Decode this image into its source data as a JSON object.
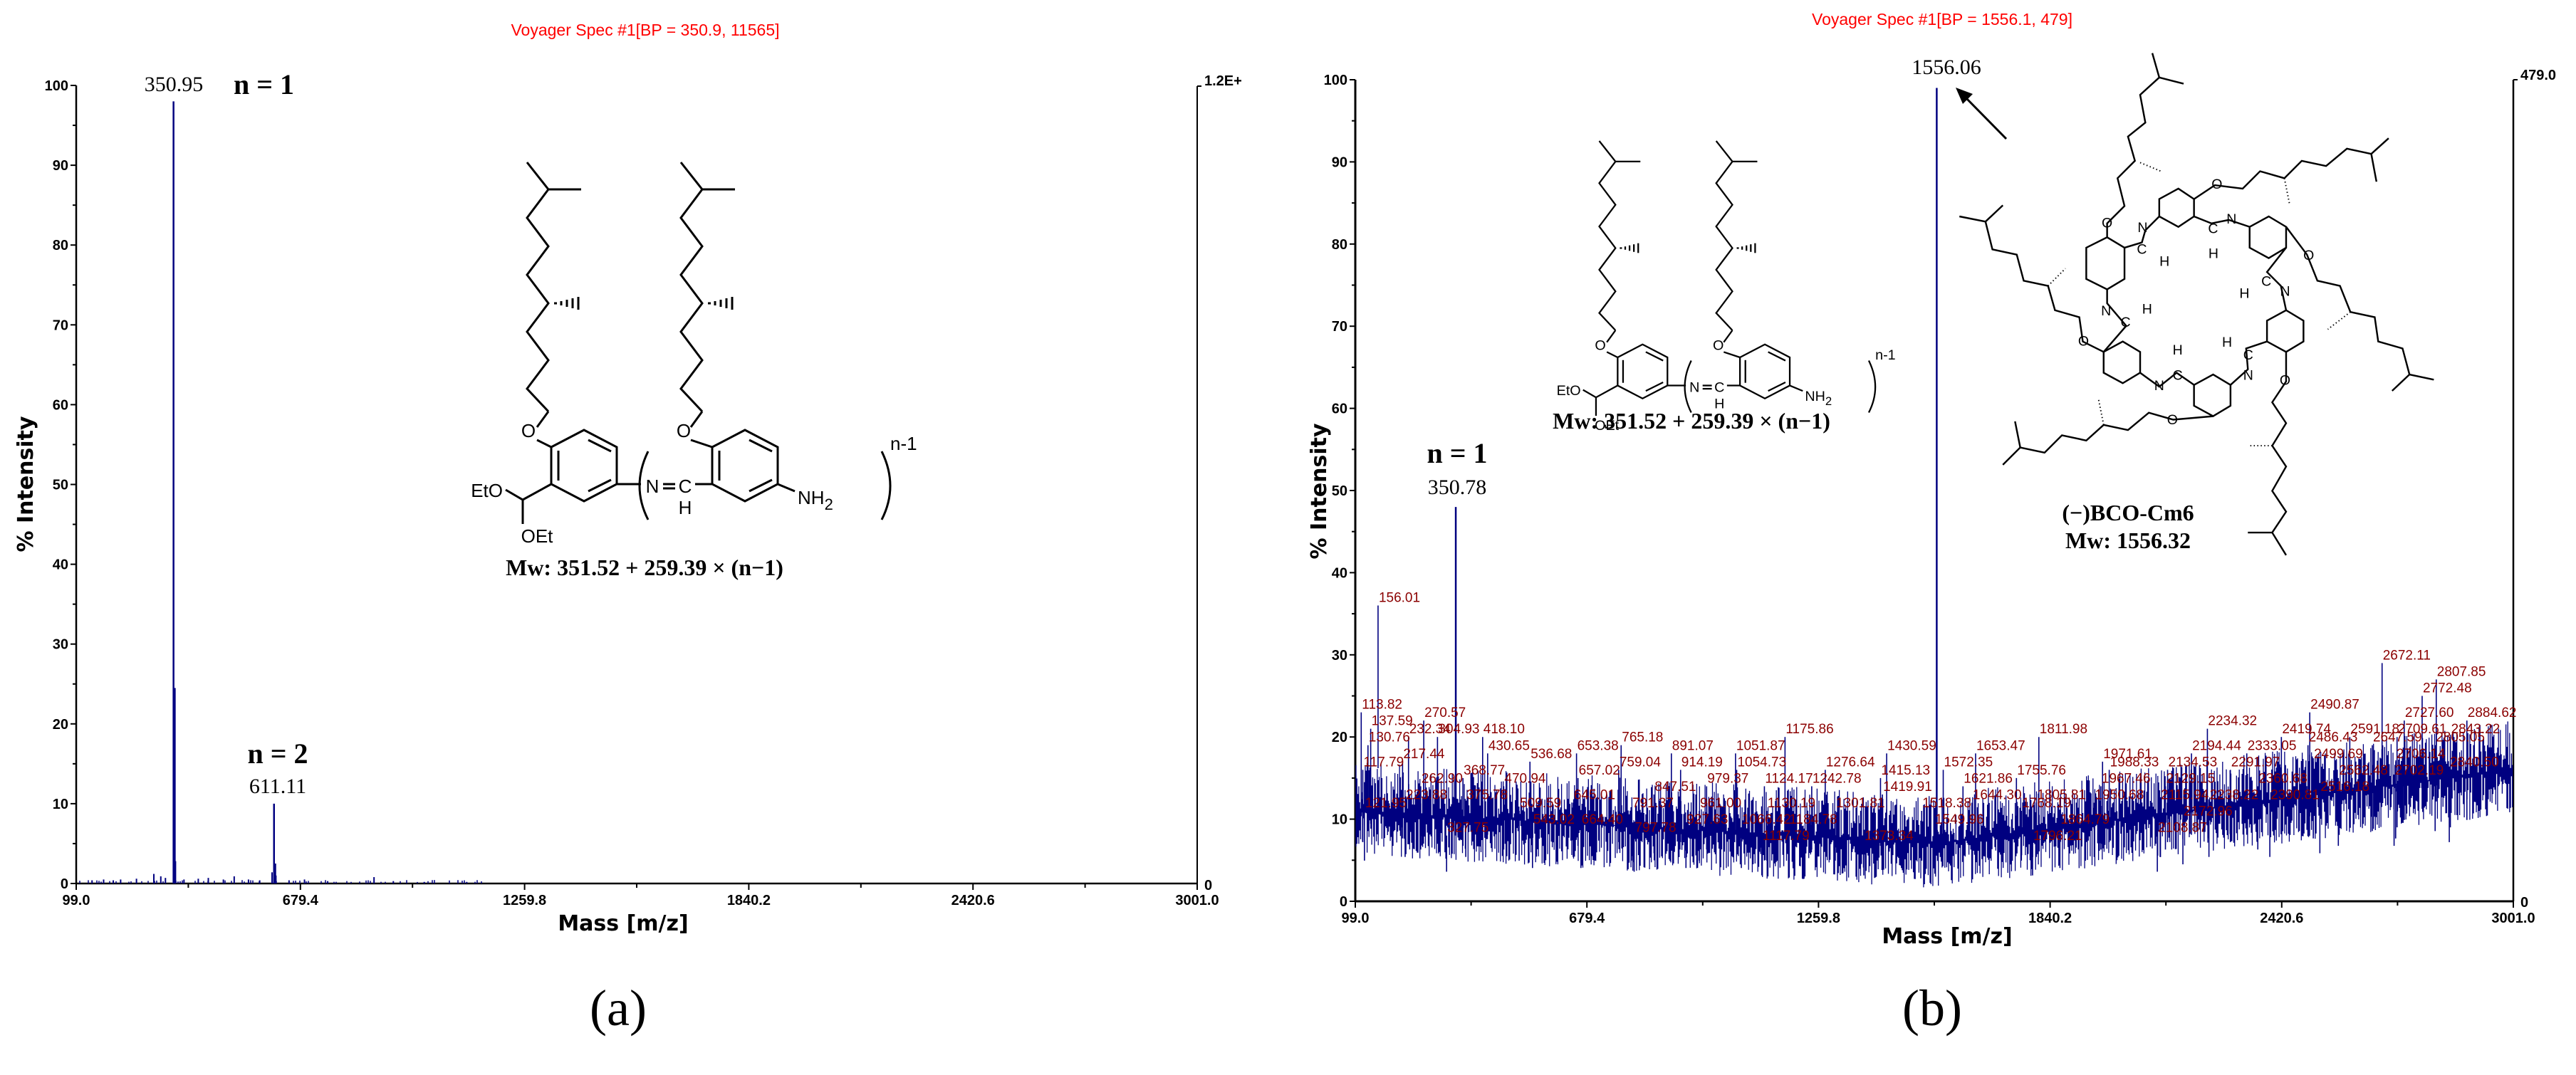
{
  "figure_labels": {
    "a": "(a)",
    "b": "(b)"
  },
  "colors": {
    "spectrum": "#000080",
    "title": "#ff0000",
    "peak_label": "#8b0000",
    "axis": "#000000"
  },
  "chart_data": [
    {
      "type": "bar",
      "panel": "a",
      "title": "Voyager Spec #1[BP = 350.9, 11565]",
      "xlabel": "Mass [m/z]",
      "ylabel": "% Intensity",
      "xlim": [
        99.0,
        3001.0
      ],
      "ylim": [
        0,
        100
      ],
      "x_ticks": [
        "99.0",
        "679.4",
        "1259.8",
        "1840.2",
        "2420.6",
        "3001.0"
      ],
      "y_ticks": [
        "0",
        "10",
        "20",
        "30",
        "40",
        "50",
        "60",
        "70",
        "80",
        "90",
        "100"
      ],
      "right_axis": {
        "top": "1.2E+",
        "bottom": "0"
      },
      "grid": false,
      "peaks": [
        {
          "mz": 350.95,
          "intensity": 98,
          "label": "350.95",
          "annotation": "n = 1"
        },
        {
          "mz": 611.11,
          "intensity": 10,
          "label": "611.11",
          "annotation": "n = 2"
        }
      ],
      "minor_peaks": [
        {
          "mz": 140,
          "intensity": 0.4
        },
        {
          "mz": 170,
          "intensity": 0.5
        },
        {
          "mz": 195,
          "intensity": 0.4
        },
        {
          "mz": 214,
          "intensity": 0.5
        },
        {
          "mz": 255,
          "intensity": 0.6
        },
        {
          "mz": 300,
          "intensity": 1.2
        },
        {
          "mz": 318,
          "intensity": 0.9
        },
        {
          "mz": 330,
          "intensity": 0.7
        },
        {
          "mz": 356,
          "intensity": 2.8
        },
        {
          "mz": 378,
          "intensity": 0.5
        },
        {
          "mz": 415,
          "intensity": 0.6
        },
        {
          "mz": 441,
          "intensity": 0.7
        },
        {
          "mz": 480,
          "intensity": 0.5
        },
        {
          "mz": 508,
          "intensity": 0.9
        },
        {
          "mz": 545,
          "intensity": 0.5
        },
        {
          "mz": 574,
          "intensity": 0.4
        },
        {
          "mz": 606,
          "intensity": 1.4
        },
        {
          "mz": 616,
          "intensity": 1.0
        },
        {
          "mz": 650,
          "intensity": 0.4
        },
        {
          "mz": 690,
          "intensity": 0.5
        },
        {
          "mz": 750,
          "intensity": 0.3
        },
        {
          "mz": 870,
          "intensity": 0.8
        },
        {
          "mz": 920,
          "intensity": 0.3
        },
        {
          "mz": 1000,
          "intensity": 0.2
        },
        {
          "mz": 1110,
          "intensity": 0.2
        }
      ],
      "structure": {
        "ether_left": "EtO",
        "ether_bottom": "OEt",
        "oxygen": "O",
        "imine_n": "N",
        "imine_c": "C",
        "imine_h": "H",
        "repeat": "n-1",
        "amine": "NH",
        "amine_sub": "2",
        "mw_formula": "Mw: 351.52 + 259.39 × (n−1)"
      }
    },
    {
      "type": "bar",
      "panel": "b",
      "title": "Voyager Spec #1[BP = 1556.1, 479]",
      "xlabel": "Mass [m/z]",
      "ylabel": "% Intensity",
      "xlim": [
        99.0,
        3001.0
      ],
      "ylim": [
        0,
        100
      ],
      "x_ticks": [
        "99.0",
        "679.4",
        "1259.8",
        "1840.2",
        "2420.6",
        "3001.0"
      ],
      "y_ticks": [
        "0",
        "10",
        "20",
        "30",
        "40",
        "50",
        "60",
        "70",
        "80",
        "90",
        "100"
      ],
      "right_axis": {
        "top": "479.0",
        "bottom": "0"
      },
      "grid": false,
      "peaks": [
        {
          "mz": 1556.06,
          "intensity": 99,
          "label": "1556.06",
          "annotation": ""
        },
        {
          "mz": 350.78,
          "intensity": 48,
          "label": "350.78",
          "annotation": "n = 1"
        }
      ],
      "labeled_noise_peaks": [
        {
          "mz": 113.82,
          "intensity": 23
        },
        {
          "mz": 117.79,
          "intensity": 16
        },
        {
          "mz": 121.95,
          "intensity": 11
        },
        {
          "mz": 130.76,
          "intensity": 19
        },
        {
          "mz": 137.59,
          "intensity": 21
        },
        {
          "mz": 156.01,
          "intensity": 36
        },
        {
          "mz": 217.44,
          "intensity": 17
        },
        {
          "mz": 223.88,
          "intensity": 12
        },
        {
          "mz": 232.34,
          "intensity": 20
        },
        {
          "mz": 262.9,
          "intensity": 14
        },
        {
          "mz": 270.57,
          "intensity": 22
        },
        {
          "mz": 304.93,
          "intensity": 20
        },
        {
          "mz": 327.75,
          "intensity": 8
        },
        {
          "mz": 368.77,
          "intensity": 15
        },
        {
          "mz": 375.78,
          "intensity": 12
        },
        {
          "mz": 418.1,
          "intensity": 20
        },
        {
          "mz": 430.65,
          "intensity": 18
        },
        {
          "mz": 470.94,
          "intensity": 14
        },
        {
          "mz": 509.59,
          "intensity": 11
        },
        {
          "mz": 536.68,
          "intensity": 17
        },
        {
          "mz": 543.02,
          "intensity": 9
        },
        {
          "mz": 645.01,
          "intensity": 12
        },
        {
          "mz": 653.38,
          "intensity": 18
        },
        {
          "mz": 657.02,
          "intensity": 15
        },
        {
          "mz": 664.4,
          "intensity": 9
        },
        {
          "mz": 759.04,
          "intensity": 16
        },
        {
          "mz": 765.18,
          "intensity": 19
        },
        {
          "mz": 791.37,
          "intensity": 11
        },
        {
          "mz": 797.78,
          "intensity": 8
        },
        {
          "mz": 847.51,
          "intensity": 13
        },
        {
          "mz": 891.07,
          "intensity": 18
        },
        {
          "mz": 914.19,
          "intensity": 16
        },
        {
          "mz": 927.63,
          "intensity": 9
        },
        {
          "mz": 961.0,
          "intensity": 11
        },
        {
          "mz": 979.37,
          "intensity": 14
        },
        {
          "mz": 1051.87,
          "intensity": 18
        },
        {
          "mz": 1054.73,
          "intensity": 16
        },
        {
          "mz": 1066.42,
          "intensity": 9
        },
        {
          "mz": 1117.79,
          "intensity": 7
        },
        {
          "mz": 1124.17,
          "intensity": 14
        },
        {
          "mz": 1130.19,
          "intensity": 11
        },
        {
          "mz": 1175.86,
          "intensity": 20
        },
        {
          "mz": 1184.78,
          "intensity": 9
        },
        {
          "mz": 1242.78,
          "intensity": 14
        },
        {
          "mz": 1276.64,
          "intensity": 16
        },
        {
          "mz": 1301.81,
          "intensity": 11
        },
        {
          "mz": 1373.34,
          "intensity": 7
        },
        {
          "mz": 1415.13,
          "intensity": 15
        },
        {
          "mz": 1419.91,
          "intensity": 13
        },
        {
          "mz": 1430.59,
          "intensity": 18
        },
        {
          "mz": 1518.38,
          "intensity": 11
        },
        {
          "mz": 1549.96,
          "intensity": 9
        },
        {
          "mz": 1572.35,
          "intensity": 16
        },
        {
          "mz": 1621.86,
          "intensity": 14
        },
        {
          "mz": 1644.3,
          "intensity": 12
        },
        {
          "mz": 1653.47,
          "intensity": 18
        },
        {
          "mz": 1755.76,
          "intensity": 15
        },
        {
          "mz": 1768.19,
          "intensity": 11
        },
        {
          "mz": 1796.21,
          "intensity": 7
        },
        {
          "mz": 1805.81,
          "intensity": 12
        },
        {
          "mz": 1811.98,
          "intensity": 20
        },
        {
          "mz": 1864.79,
          "intensity": 9
        },
        {
          "mz": 1950.68,
          "intensity": 12
        },
        {
          "mz": 1967.46,
          "intensity": 14
        },
        {
          "mz": 1971.61,
          "intensity": 17
        },
        {
          "mz": 1988.33,
          "intensity": 16
        },
        {
          "mz": 2108.87,
          "intensity": 8
        },
        {
          "mz": 2115.94,
          "intensity": 12
        },
        {
          "mz": 2129.15,
          "intensity": 14
        },
        {
          "mz": 2134.53,
          "intensity": 16
        },
        {
          "mz": 2172.96,
          "intensity": 10
        },
        {
          "mz": 2194.44,
          "intensity": 18
        },
        {
          "mz": 2234.32,
          "intensity": 21
        },
        {
          "mz": 2238.22,
          "intensity": 12
        },
        {
          "mz": 2291.97,
          "intensity": 16
        },
        {
          "mz": 2333.05,
          "intensity": 18
        },
        {
          "mz": 2360.68,
          "intensity": 14
        },
        {
          "mz": 2390.81,
          "intensity": 12
        },
        {
          "mz": 2419.74,
          "intensity": 20
        },
        {
          "mz": 2486.43,
          "intensity": 19
        },
        {
          "mz": 2490.87,
          "intensity": 23
        },
        {
          "mz": 2499.69,
          "intensity": 17
        },
        {
          "mz": 2516.18,
          "intensity": 13
        },
        {
          "mz": 2562.48,
          "intensity": 15
        },
        {
          "mz": 2591.18,
          "intensity": 20
        },
        {
          "mz": 2647.59,
          "intensity": 19
        },
        {
          "mz": 2672.11,
          "intensity": 29
        },
        {
          "mz": 2702.19,
          "intensity": 15
        },
        {
          "mz": 2706.14,
          "intensity": 17
        },
        {
          "mz": 2709.61,
          "intensity": 20
        },
        {
          "mz": 2727.6,
          "intensity": 22
        },
        {
          "mz": 2772.48,
          "intensity": 25
        },
        {
          "mz": 2805.05,
          "intensity": 19
        },
        {
          "mz": 2807.85,
          "intensity": 27
        },
        {
          "mz": 2840.5,
          "intensity": 16
        },
        {
          "mz": 2843.22,
          "intensity": 20
        },
        {
          "mz": 2884.62,
          "intensity": 22
        }
      ],
      "noise_baseline": {
        "start": 11,
        "mid": 7,
        "end": 16,
        "amplitude": 6
      },
      "structure_linear": {
        "ether_left": "EtO",
        "ether_bottom": "OEt",
        "oxygen": "O",
        "imine_n": "N",
        "imine_c": "C",
        "imine_h": "H",
        "repeat": "n-1",
        "amine": "NH",
        "amine_sub": "2",
        "mw_formula": "Mw: 351.52 + 259.39 × (n−1)"
      },
      "structure_macrocycle": {
        "name": "(−)BCO-Cm6",
        "mw": "Mw: 1556.32",
        "atoms": {
          "oxygen": "O",
          "nitrogen": "N",
          "carbon": "C",
          "hydrogen": "H"
        }
      }
    }
  ]
}
